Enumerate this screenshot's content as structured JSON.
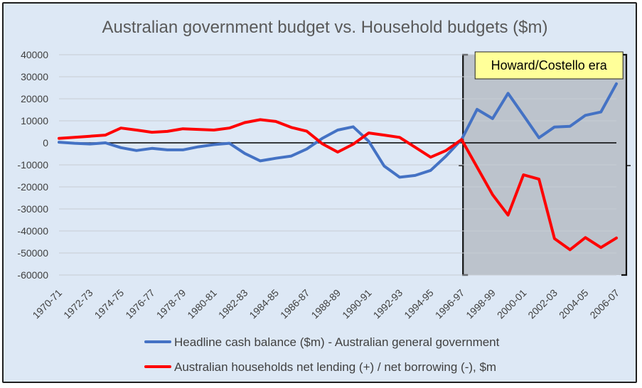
{
  "chart_data": {
    "type": "line",
    "title": "Australian government budget vs. Household budgets ($m)",
    "xlabel": "",
    "ylabel": "",
    "ylim": [
      -60000,
      40000
    ],
    "yticks": [
      40000,
      30000,
      20000,
      10000,
      0,
      -10000,
      -20000,
      -30000,
      -40000,
      -50000,
      -60000
    ],
    "grid": "horizontal",
    "legend_position": "bottom",
    "categories": [
      "1970-71",
      "1971-72",
      "1972-73",
      "1973-74",
      "1974-75",
      "1975-76",
      "1976-77",
      "1977-78",
      "1978-79",
      "1979-80",
      "1980-81",
      "1981-82",
      "1982-83",
      "1983-84",
      "1984-85",
      "1985-86",
      "1986-87",
      "1987-88",
      "1988-89",
      "1989-90",
      "1990-91",
      "1991-92",
      "1992-93",
      "1993-94",
      "1994-95",
      "1995-96",
      "1996-97",
      "1997-98",
      "1998-99",
      "1999-00",
      "2000-01",
      "2001-02",
      "2002-03",
      "2003-04",
      "2004-05",
      "2005-06",
      "2006-07"
    ],
    "x_tick_labels": [
      "1970-71",
      "1972-73",
      "1974-75",
      "1976-77",
      "1978-79",
      "1980-81",
      "1982-83",
      "1984-85",
      "1986-87",
      "1988-89",
      "1990-91",
      "1992-93",
      "1994-95",
      "1996-97",
      "1998-99",
      "2000-01",
      "2002-03",
      "2004-05",
      "2006-07"
    ],
    "series": [
      {
        "name": "Headline cash balance ($m) - Australian general government",
        "color": "#4472c4",
        "values": [
          300,
          -200,
          -500,
          0,
          -2200,
          -3500,
          -2500,
          -3200,
          -3200,
          -1800,
          -800,
          -200,
          -4800,
          -8200,
          -7000,
          -6000,
          -2800,
          2000,
          5800,
          7300,
          700,
          -10500,
          -15600,
          -14800,
          -12500,
          -6000,
          1500,
          15200,
          11000,
          22500,
          12500,
          2300,
          7200,
          7500,
          12500,
          14000,
          26800
        ]
      },
      {
        "name": "Australian households net lending (+) / net borrowing (-), $m",
        "color": "#ff0000",
        "values": [
          2000,
          2500,
          3000,
          3500,
          6700,
          5800,
          4800,
          5200,
          6400,
          6100,
          5800,
          6700,
          9200,
          10500,
          9700,
          7000,
          5300,
          -400,
          -4200,
          -600,
          4500,
          3500,
          2500,
          -2000,
          -6500,
          -3500,
          1500,
          -11000,
          -23500,
          -32800,
          -14500,
          -16500,
          -43500,
          -48500,
          -43000,
          -47500,
          -43200
        ]
      }
    ],
    "annotation": {
      "label": "Howard/Costello era",
      "from": "1996-97",
      "to": "2006-07",
      "box_color": "#ffff99",
      "shade_color": "#bcc3cc"
    }
  }
}
